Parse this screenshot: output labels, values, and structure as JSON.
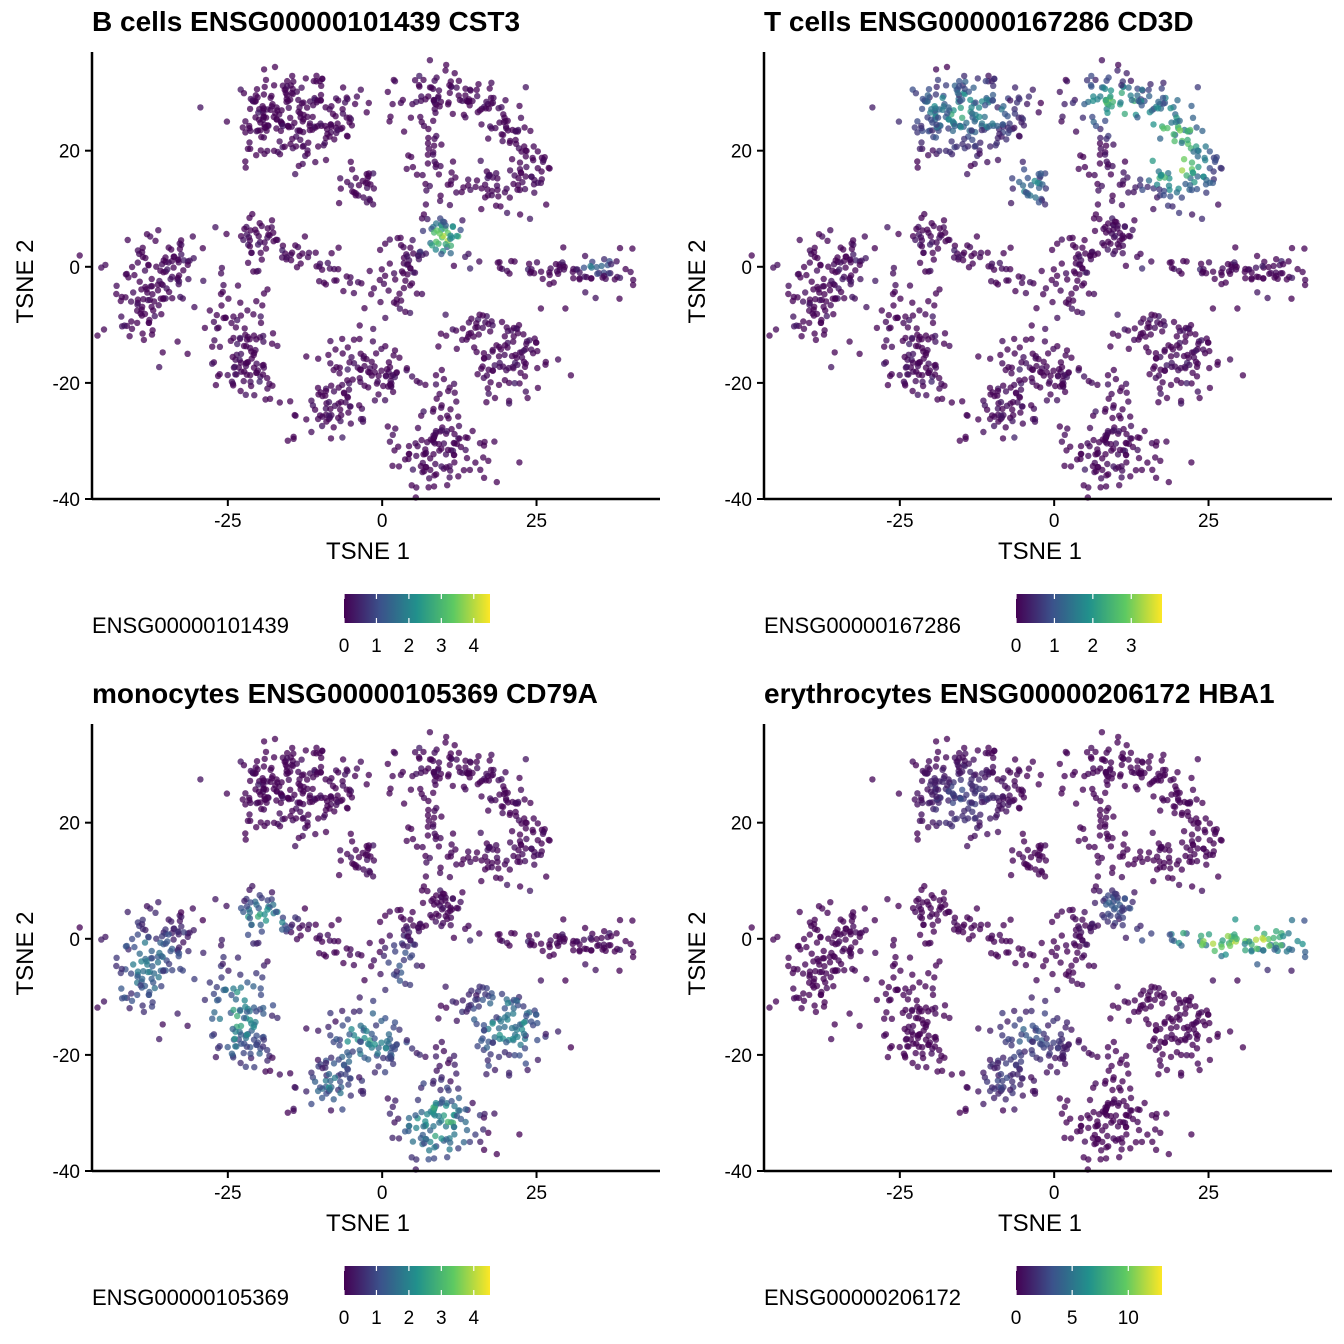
{
  "colors": {
    "viridis": [
      "#440154",
      "#3b528b",
      "#21918c",
      "#5ec962",
      "#fde725"
    ]
  },
  "chart_data": [
    {
      "type": "scatter",
      "title": "B cells ENSG00000101439 CST3",
      "xlabel": "TSNE 1",
      "ylabel": "TSNE 2",
      "xlim": [
        -47,
        45
      ],
      "ylim": [
        -40,
        37
      ],
      "xticks": [
        "-25",
        "0",
        "25"
      ],
      "xtick_values": [
        -25,
        0,
        25
      ],
      "yticks": [
        "-40",
        "-20",
        "0",
        "20"
      ],
      "ytick_values": [
        -40,
        -20,
        0,
        20
      ],
      "legend_title": "ENSG00000101439",
      "color_range": [
        0,
        4.5
      ],
      "legend_ticks": [
        "0",
        "1",
        "2",
        "3",
        "4"
      ],
      "legend_tick_values": [
        0,
        1,
        2,
        3,
        4
      ],
      "hotspots": [
        {
          "x": 10,
          "y": 5,
          "sx": 2.5,
          "sy": 2,
          "value": 3.2
        },
        {
          "x": 35,
          "y": 0,
          "sx": 2,
          "sy": 1,
          "value": 1.5
        }
      ]
    },
    {
      "type": "scatter",
      "title": "T cells ENSG00000167286 CD3D",
      "xlabel": "TSNE 1",
      "ylabel": "TSNE 2",
      "xlim": [
        -47,
        45
      ],
      "ylim": [
        -40,
        37
      ],
      "xticks": [
        "-25",
        "0",
        "25"
      ],
      "xtick_values": [
        -25,
        0,
        25
      ],
      "yticks": [
        "-40",
        "-20",
        "0",
        "20"
      ],
      "ytick_values": [
        -40,
        -20,
        0,
        20
      ],
      "legend_title": "ENSG00000167286",
      "color_range": [
        0,
        3.8
      ],
      "legend_ticks": [
        "0",
        "1",
        "2",
        "3"
      ],
      "legend_tick_values": [
        0,
        1,
        2,
        3
      ],
      "hotspots": [
        {
          "x": -15,
          "y": 27,
          "sx": 6,
          "sy": 4,
          "value": 1.8
        },
        {
          "x": 10,
          "y": 28,
          "sx": 4,
          "sy": 3,
          "value": 2.3
        },
        {
          "x": 20,
          "y": 17,
          "sx": 4,
          "sy": 4,
          "value": 2.3
        },
        {
          "x": 20,
          "y": 25,
          "sx": 3,
          "sy": 4,
          "value": 1.8
        },
        {
          "x": -4,
          "y": 14,
          "sx": 2,
          "sy": 2.5,
          "value": 1.8
        }
      ]
    },
    {
      "type": "scatter",
      "title": "monocytes ENSG00000105369 CD79A",
      "xlabel": "TSNE 1",
      "ylabel": "TSNE 2",
      "xlim": [
        -47,
        45
      ],
      "ylim": [
        -40,
        37
      ],
      "xticks": [
        "-25",
        "0",
        "25"
      ],
      "xtick_values": [
        -25,
        0,
        25
      ],
      "yticks": [
        "-40",
        "-20",
        "0",
        "20"
      ],
      "ytick_values": [
        -40,
        -20,
        0,
        20
      ],
      "legend_title": "ENSG00000105369",
      "color_range": [
        0,
        4.5
      ],
      "legend_ticks": [
        "0",
        "1",
        "2",
        "3",
        "4"
      ],
      "legend_tick_values": [
        0,
        1,
        2,
        3,
        4
      ],
      "hotspots": [
        {
          "x": -38,
          "y": -5,
          "sx": 4,
          "sy": 6,
          "value": 1.6
        },
        {
          "x": -23,
          "y": -13,
          "sx": 4,
          "sy": 6,
          "value": 2.0
        },
        {
          "x": -19,
          "y": 4,
          "sx": 3,
          "sy": 2.5,
          "value": 2.2
        },
        {
          "x": 20,
          "y": -15,
          "sx": 5,
          "sy": 5,
          "value": 1.8
        },
        {
          "x": -2,
          "y": -17,
          "sx": 5,
          "sy": 4,
          "value": 1.8
        },
        {
          "x": 9,
          "y": -32,
          "sx": 4,
          "sy": 4,
          "value": 2.6
        },
        {
          "x": -9,
          "y": -26,
          "sx": 3,
          "sy": 3,
          "value": 1.4
        },
        {
          "x": 3,
          "y": -4,
          "sx": 2,
          "sy": 3,
          "value": 1.2
        }
      ]
    },
    {
      "type": "scatter",
      "title": "erythrocytes ENSG00000206172 HBA1",
      "xlabel": "TSNE 1",
      "ylabel": "TSNE 2",
      "xlim": [
        -47,
        45
      ],
      "ylim": [
        -40,
        37
      ],
      "xticks": [
        "-25",
        "0",
        "25"
      ],
      "xtick_values": [
        -25,
        0,
        25
      ],
      "yticks": [
        "-40",
        "-20",
        "0",
        "20"
      ],
      "ytick_values": [
        -40,
        -20,
        0,
        20
      ],
      "legend_title": "ENSG00000206172",
      "color_range": [
        0,
        13
      ],
      "legend_ticks": [
        "0",
        "5",
        "10"
      ],
      "legend_tick_values": [
        0,
        5,
        10
      ],
      "hotspots": [
        {
          "x": 30,
          "y": 0,
          "sx": 10,
          "sy": 3,
          "value": 9.5
        },
        {
          "x": -4,
          "y": -16,
          "sx": 5,
          "sy": 4,
          "value": 3.0
        },
        {
          "x": -15,
          "y": 24,
          "sx": 4,
          "sy": 4,
          "value": 2.5
        },
        {
          "x": -9,
          "y": -25,
          "sx": 3,
          "sy": 3,
          "value": 2.0
        },
        {
          "x": 10,
          "y": 6,
          "sx": 3,
          "sy": 2,
          "value": 3.0
        }
      ]
    }
  ]
}
